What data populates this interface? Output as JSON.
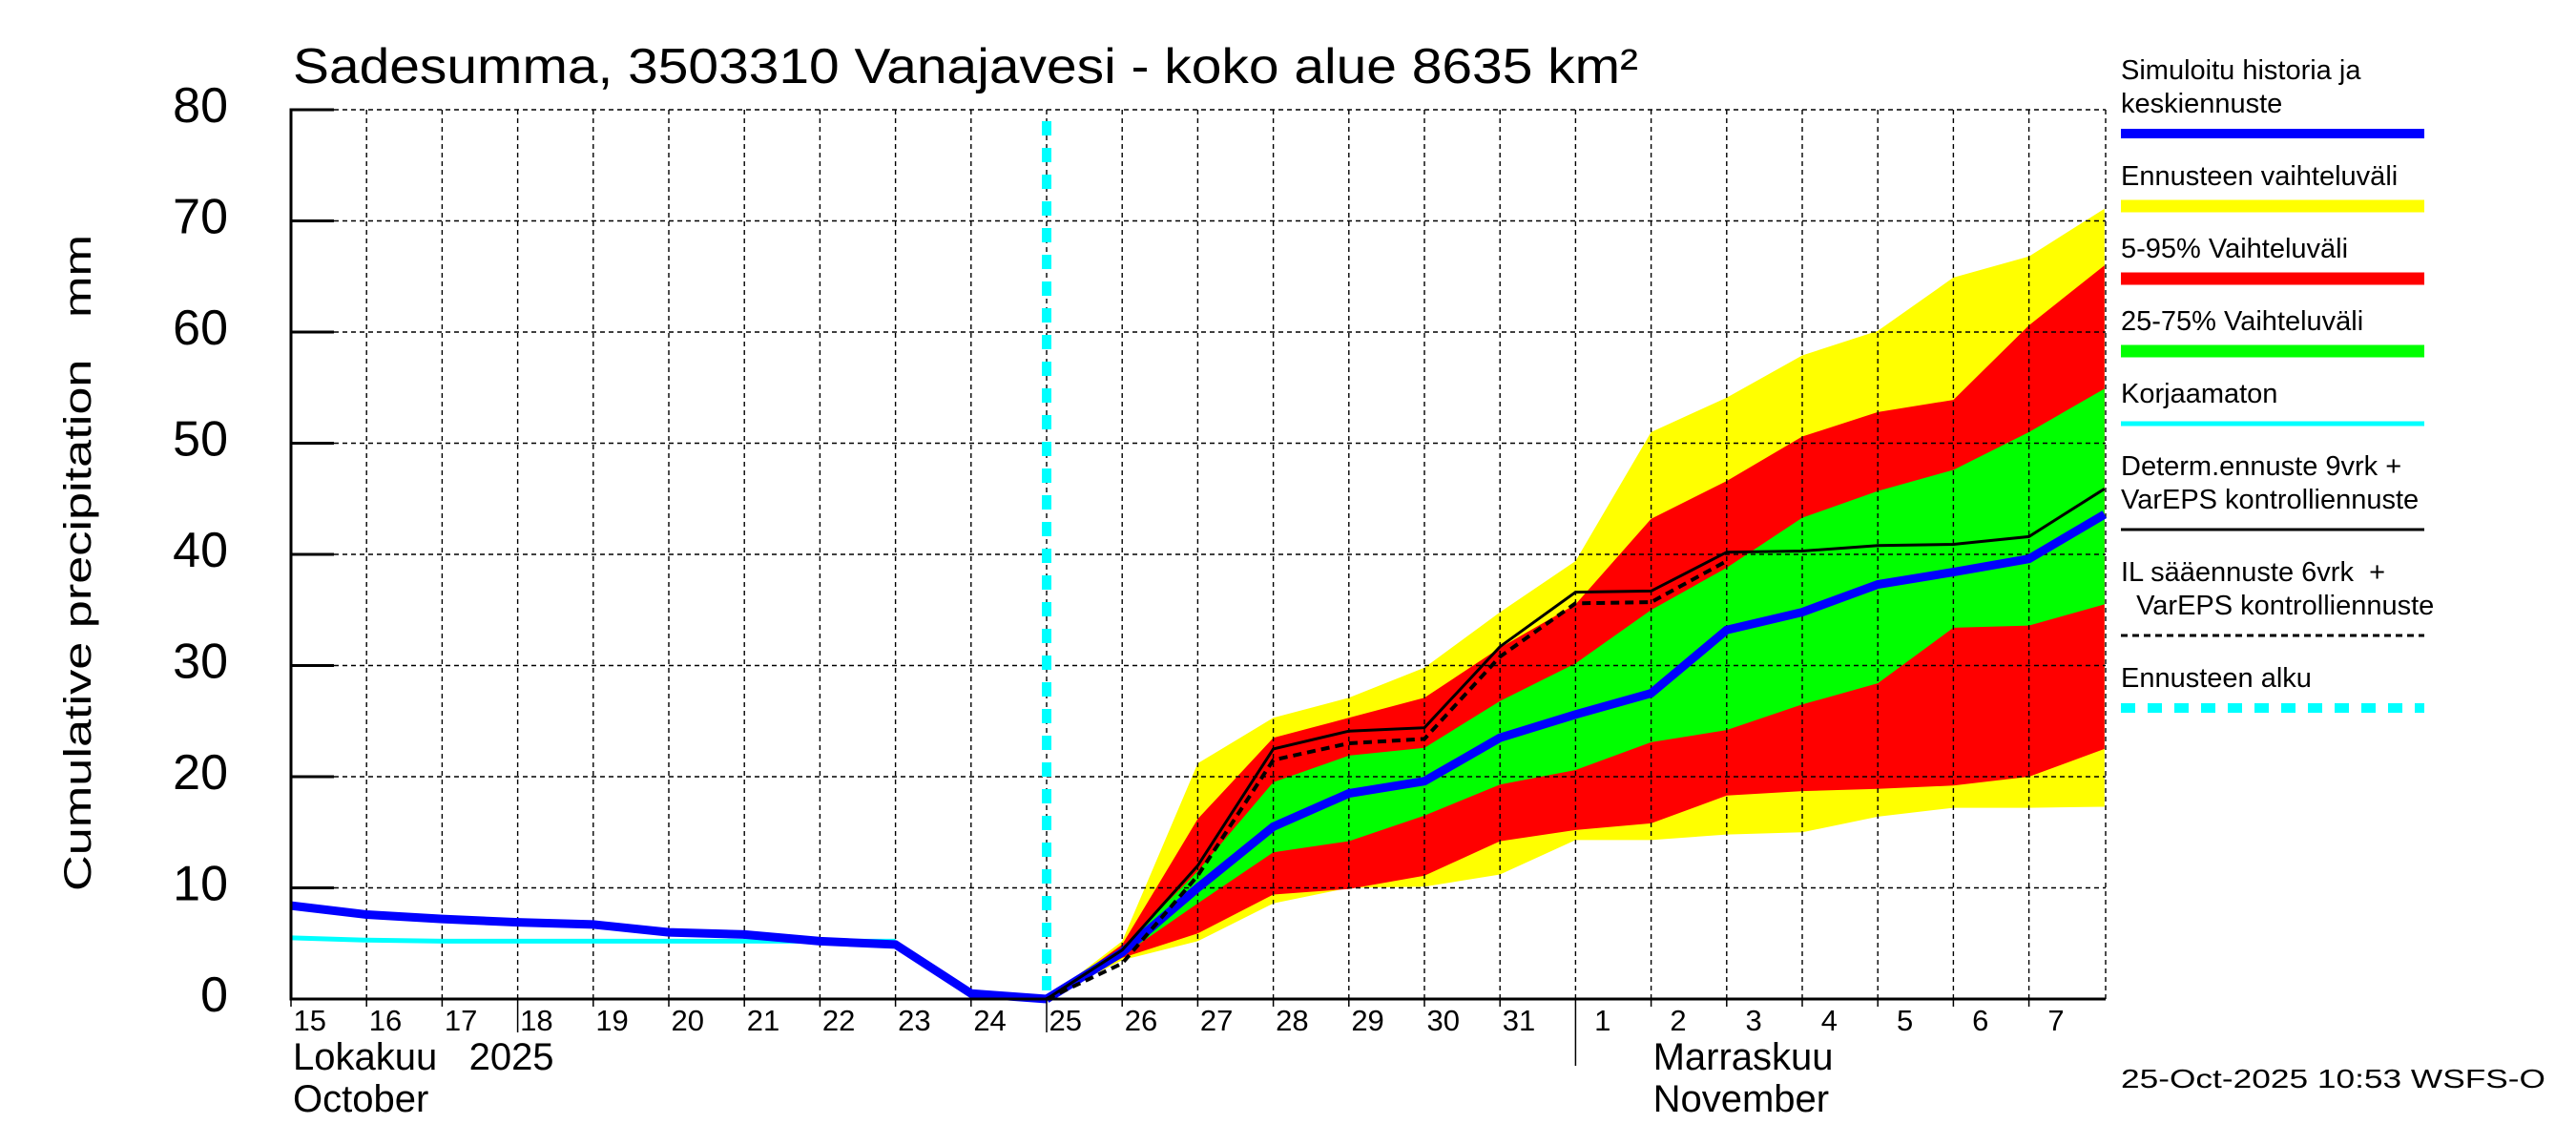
{
  "chart_data": {
    "type": "area",
    "title": "Sadesumma, 3503310 Vanajavesi - koko alue 8635 km²",
    "ylabel": "Cumulative precipitation   mm",
    "xlabel": "",
    "ylim": [
      0,
      80
    ],
    "yticks": [
      "0",
      "10",
      "20",
      "30",
      "40",
      "50",
      "60",
      "70",
      "80"
    ],
    "ytick_values": [
      0,
      10,
      20,
      30,
      40,
      50,
      60,
      70,
      80
    ],
    "grid": true,
    "x_start": "2025-10-15",
    "x_end": "2025-11-08",
    "xticks": [
      "15",
      "16",
      "17",
      "18",
      "19",
      "20",
      "21",
      "22",
      "23",
      "24",
      "25",
      "26",
      "27",
      "28",
      "29",
      "30",
      "31",
      "1",
      "2",
      "3",
      "4",
      "5",
      "6",
      "7"
    ],
    "months": [
      {
        "line1": "Lokakuu   2025",
        "line2": "October",
        "start_day_index": 0
      },
      {
        "line1": "Marraskuu",
        "line2": "November",
        "start_day_index": 17
      }
    ],
    "forecast_start_day_index": 10,
    "history": {
      "name": "Simuloitu historia ja keskiennuste",
      "x": [
        0,
        1,
        2,
        3,
        4,
        5,
        6,
        7,
        8,
        9,
        10
      ],
      "values": [
        8.4,
        7.6,
        7.2,
        6.9,
        6.7,
        6.0,
        5.8,
        5.2,
        4.9,
        0.5,
        0.0
      ]
    },
    "uncorrected": {
      "name": "Korjaamaton",
      "x": [
        0,
        1,
        2,
        3,
        4,
        5,
        6,
        7,
        8
      ],
      "values": [
        5.5,
        5.3,
        5.2,
        5.2,
        5.2,
        5.2,
        5.2,
        5.2,
        5.2
      ]
    },
    "forecast_x": [
      10,
      11,
      12,
      13,
      14,
      15,
      16,
      17,
      18,
      19,
      20,
      21,
      22,
      23,
      24
    ],
    "bands": {
      "range_max": [
        0,
        5.2,
        21.2,
        25.3,
        27.1,
        29.8,
        34.8,
        39.4,
        51.0,
        54.1,
        57.9,
        60.1,
        64.9,
        66.8,
        71.1
      ],
      "p95": [
        0,
        4.9,
        16.2,
        23.5,
        25.3,
        27.1,
        31.6,
        35.5,
        43.2,
        46.6,
        50.6,
        52.8,
        53.9,
        60.6,
        66.0
      ],
      "p75": [
        0,
        4.6,
        11.5,
        19.5,
        21.9,
        22.6,
        26.8,
        30.2,
        35.0,
        38.8,
        43.3,
        45.7,
        47.6,
        51.0,
        54.9
      ],
      "p25": [
        0,
        3.9,
        8.6,
        13.2,
        14.2,
        16.5,
        19.3,
        20.6,
        23.1,
        24.2,
        26.5,
        28.4,
        33.4,
        33.6,
        35.5
      ],
      "p05": [
        0,
        3.7,
        5.9,
        9.4,
        9.9,
        11.1,
        14.2,
        15.2,
        15.8,
        18.3,
        18.7,
        18.9,
        19.2,
        20.0,
        22.5
      ],
      "range_min": [
        0,
        3.5,
        5.2,
        8.6,
        10.0,
        10.1,
        11.2,
        14.3,
        14.3,
        14.8,
        15.0,
        16.4,
        17.2,
        17.2,
        17.3
      ]
    },
    "median": [
      0,
      4.2,
      10.0,
      15.5,
      18.5,
      19.6,
      23.5,
      25.6,
      27.5,
      33.2,
      34.8,
      37.3,
      38.4,
      39.6,
      43.6
    ],
    "determ": {
      "name": "Determ.ennuste 9vrk + VarEPS kontrolliennuste",
      "values": [
        0,
        4.4,
        12.0,
        22.5,
        24.1,
        24.4,
        31.7,
        36.6,
        36.7,
        40.2,
        40.3,
        40.8,
        40.9,
        41.6,
        45.9
      ]
    },
    "il_forecast": {
      "name": "IL sääennuste 6vrk + VarEPS kontrolliennuste",
      "x": [
        10,
        11,
        12,
        13,
        14,
        15,
        16,
        17,
        18,
        19
      ],
      "values": [
        0,
        3.2,
        11.1,
        21.5,
        23.0,
        23.4,
        30.8,
        35.6,
        35.7,
        39.4
      ]
    },
    "legend_position": "right"
  },
  "legend": {
    "items": [
      {
        "lines": [
          "Simuloitu historia ja",
          "keskiennuste"
        ],
        "color": "#0000ff",
        "style": "thick"
      },
      {
        "lines": [
          "Ennusteen vaihteluväli"
        ],
        "color": "#ffff00",
        "style": "band"
      },
      {
        "lines": [
          "5-95% Vaihteluväli"
        ],
        "color": "#ff0000",
        "style": "band"
      },
      {
        "lines": [
          "25-75% Vaihteluväli"
        ],
        "color": "#00ff00",
        "style": "band"
      },
      {
        "lines": [
          "Korjaamaton"
        ],
        "color": "#00ffff",
        "style": "thin"
      },
      {
        "lines": [
          "Determ.ennuste 9vrk +",
          "VarEPS kontrolliennuste"
        ],
        "color": "#000000",
        "style": "solid"
      },
      {
        "lines": [
          "IL sääennuste 6vrk  +",
          "  VarEPS kontrolliennuste"
        ],
        "color": "#000000",
        "style": "dashed"
      },
      {
        "lines": [
          "Ennusteen alku"
        ],
        "color": "#00ffff",
        "style": "dotted"
      }
    ]
  },
  "footer": {
    "timestamp": "25-Oct-2025 10:53 WSFS-O"
  },
  "colors": {
    "history": "#0000ff",
    "uncorrected": "#00ffff",
    "range": "#ffff00",
    "p5_95": "#ff0000",
    "p25_75": "#00ff00",
    "forecast_start": "#00ffff",
    "determ": "#000000"
  }
}
